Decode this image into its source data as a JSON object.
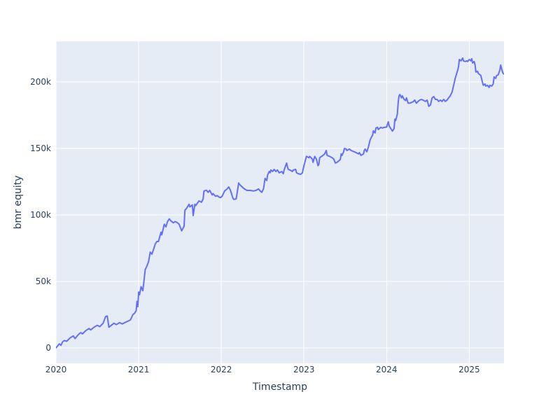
{
  "style": {
    "paper_bgcolor": "#ffffff",
    "plot_bgcolor": "#e5ecf6",
    "grid_color": "#ffffff",
    "text_color": "#2a3f5f",
    "line_color": "#636efa"
  },
  "chart_data": {
    "type": "line",
    "title": "",
    "xlabel": "Timestamp",
    "ylabel": "bmr equity",
    "grid": true,
    "legend_visible": false,
    "x_range": [
      2020,
      2025.42
    ],
    "y_range": [
      -11600,
      230500
    ],
    "x_tick_values": [
      2020,
      2021,
      2022,
      2023,
      2024,
      2025
    ],
    "x_tick_labels": [
      "2020",
      "2021",
      "2022",
      "2023",
      "2024",
      "2025"
    ],
    "y_tick_values": [
      0,
      50000,
      100000,
      150000,
      200000
    ],
    "y_tick_labels": [
      "0",
      "50k",
      "100k",
      "150k",
      "200k"
    ],
    "series": [
      {
        "name": "bmr equity",
        "x": [
          2020.0,
          2020.02,
          2020.04,
          2020.06,
          2020.08,
          2020.1,
          2020.13,
          2020.17,
          2020.21,
          2020.23,
          2020.27,
          2020.3,
          2020.32,
          2020.36,
          2020.4,
          2020.42,
          2020.46,
          2020.5,
          2020.53,
          2020.57,
          2020.6,
          2020.62,
          2020.64,
          2020.67,
          2020.7,
          2020.73,
          2020.77,
          2020.8,
          2020.85,
          2020.9,
          2020.93,
          2020.95,
          2020.97,
          2020.98,
          2020.99,
          2021.0,
          2021.01,
          2021.03,
          2021.05,
          2021.06,
          2021.08,
          2021.1,
          2021.12,
          2021.14,
          2021.16,
          2021.18,
          2021.2,
          2021.22,
          2021.24,
          2021.27,
          2021.28,
          2021.31,
          2021.33,
          2021.35,
          2021.37,
          2021.39,
          2021.42,
          2021.44,
          2021.46,
          2021.49,
          2021.52,
          2021.55,
          2021.56,
          2021.58,
          2021.61,
          2021.62,
          2021.65,
          2021.66,
          2021.68,
          2021.69,
          2021.73,
          2021.76,
          2021.78,
          2021.79,
          2021.82,
          2021.84,
          2021.86,
          2021.89,
          2021.9,
          2021.93,
          2021.95,
          2021.97,
          2021.99,
          2022.01,
          2022.04,
          2022.07,
          2022.09,
          2022.11,
          2022.14,
          2022.15,
          2022.18,
          2022.21,
          2022.22,
          2022.26,
          2022.28,
          2022.31,
          2022.35,
          2022.39,
          2022.42,
          2022.45,
          2022.47,
          2022.49,
          2022.51,
          2022.52,
          2022.53,
          2022.55,
          2022.56,
          2022.58,
          2022.59,
          2022.6,
          2022.62,
          2022.64,
          2022.66,
          2022.68,
          2022.7,
          2022.73,
          2022.75,
          2022.76,
          2022.79,
          2022.8,
          2022.81,
          2022.83,
          2022.86,
          2022.87,
          2022.9,
          2022.91,
          2022.93,
          2022.96,
          2022.98,
          2023.0,
          2023.03,
          2023.06,
          2023.07,
          2023.1,
          2023.11,
          2023.13,
          2023.15,
          2023.17,
          2023.18,
          2023.19,
          2023.23,
          2023.25,
          2023.27,
          2023.28,
          2023.31,
          2023.34,
          2023.36,
          2023.38,
          2023.4,
          2023.42,
          2023.44,
          2023.45,
          2023.46,
          2023.48,
          2023.49,
          2023.51,
          2023.52,
          2023.55,
          2023.57,
          2023.61,
          2023.63,
          2023.66,
          2023.67,
          2023.69,
          2023.72,
          2023.73,
          2023.74,
          2023.76,
          2023.78,
          2023.8,
          2023.82,
          2023.83,
          2023.84,
          2023.86,
          2023.87,
          2023.89,
          2023.9,
          2023.93,
          2023.95,
          2023.97,
          2024.0,
          2024.02,
          2024.03,
          2024.05,
          2024.07,
          2024.09,
          2024.1,
          2024.11,
          2024.13,
          2024.14,
          2024.15,
          2024.16,
          2024.18,
          2024.19,
          2024.21,
          2024.23,
          2024.24,
          2024.26,
          2024.28,
          2024.3,
          2024.32,
          2024.34,
          2024.36,
          2024.38,
          2024.4,
          2024.42,
          2024.44,
          2024.47,
          2024.49,
          2024.51,
          2024.53,
          2024.55,
          2024.57,
          2024.59,
          2024.61,
          2024.63,
          2024.65,
          2024.67,
          2024.69,
          2024.71,
          2024.73,
          2024.75,
          2024.77,
          2024.79,
          2024.8,
          2024.82,
          2024.83,
          2024.84,
          2024.86,
          2024.87,
          2024.88,
          2024.9,
          2024.92,
          2024.93,
          2024.95,
          2024.97,
          2024.98,
          2025.0,
          2025.02,
          2025.03,
          2025.04,
          2025.06,
          2025.07,
          2025.08,
          2025.1,
          2025.11,
          2025.13,
          2025.14,
          2025.16,
          2025.17,
          2025.19,
          2025.2,
          2025.22,
          2025.24,
          2025.25,
          2025.27,
          2025.29,
          2025.3,
          2025.32,
          2025.33,
          2025.35,
          2025.37,
          2025.38,
          2025.4,
          2025.41,
          2025.42
        ],
        "y": [
          0,
          1500,
          3000,
          2000,
          4500,
          5500,
          5000,
          7500,
          9000,
          7000,
          10000,
          11500,
          10500,
          13000,
          14500,
          13500,
          15500,
          17000,
          16000,
          18500,
          23500,
          24000,
          15500,
          17000,
          18500,
          17500,
          19000,
          18000,
          19500,
          21000,
          25000,
          26000,
          28000,
          35000,
          31000,
          42000,
          40000,
          46000,
          43000,
          48000,
          59000,
          61500,
          65000,
          72000,
          70500,
          74000,
          78000,
          80000,
          80000,
          87000,
          85000,
          93000,
          91000,
          95000,
          97000,
          95500,
          94000,
          95000,
          94500,
          93000,
          88000,
          91500,
          103500,
          105000,
          108000,
          106000,
          107500,
          99500,
          108000,
          107000,
          110500,
          109500,
          112000,
          118000,
          118500,
          117000,
          118400,
          115000,
          116000,
          114000,
          114500,
          113500,
          113000,
          114000,
          118000,
          119500,
          121000,
          118500,
          112600,
          111600,
          112000,
          124000,
          123000,
          120500,
          119500,
          118400,
          118400,
          118000,
          118400,
          119500,
          118000,
          117000,
          119500,
          123700,
          127400,
          125800,
          130000,
          132600,
          131600,
          133700,
          132600,
          134200,
          132600,
          133700,
          131600,
          132600,
          131000,
          133700,
          139000,
          136300,
          134200,
          133700,
          132600,
          133700,
          134200,
          131600,
          131000,
          130500,
          131500,
          137000,
          144000,
          143000,
          144000,
          142000,
          139500,
          144000,
          142000,
          137000,
          138000,
          143000,
          144700,
          145800,
          148400,
          144700,
          144000,
          143000,
          142000,
          139000,
          139500,
          140500,
          141600,
          145800,
          144700,
          147400,
          150000,
          149500,
          148400,
          149500,
          148400,
          147400,
          146800,
          145800,
          146800,
          144700,
          145800,
          148400,
          149500,
          147400,
          151000,
          156300,
          159000,
          160000,
          163200,
          161600,
          165300,
          165800,
          164200,
          165800,
          165300,
          165800,
          166000,
          170000,
          167000,
          165000,
          163000,
          165000,
          172000,
          171000,
          176000,
          185000,
          189500,
          190500,
          188000,
          189500,
          187000,
          186000,
          188000,
          184000,
          184000,
          184500,
          185000,
          186300,
          184000,
          185300,
          186300,
          186800,
          186300,
          185300,
          186300,
          181600,
          182600,
          188000,
          188900,
          186800,
          186800,
          185300,
          186300,
          185300,
          186800,
          185300,
          186300,
          187900,
          189500,
          192000,
          194500,
          200000,
          202600,
          204700,
          208900,
          211600,
          216800,
          215800,
          217900,
          215800,
          215300,
          215800,
          215300,
          216800,
          215800,
          217400,
          214200,
          215300,
          212600,
          207400,
          207900,
          206300,
          205300,
          204700,
          199500,
          197400,
          198400,
          196800,
          197400,
          195800,
          197400,
          196800,
          198400,
          203700,
          202600,
          204700,
          205300,
          208900,
          212600,
          207900,
          206300,
          205800
        ]
      }
    ]
  }
}
